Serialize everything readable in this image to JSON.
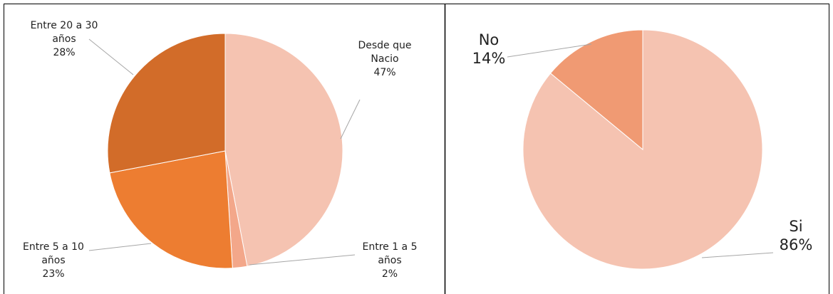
{
  "chart_data": [
    {
      "type": "pie",
      "categories": [
        "Desde que Nacio",
        "Entre 1 a 5 años",
        "Entre 5 a 10 años",
        "Entre 20 a 30 años"
      ],
      "values": [
        47,
        2,
        23,
        28
      ],
      "value_labels": [
        "47%",
        "2%",
        "23%",
        "28%"
      ],
      "colors": [
        "#f5c3b1",
        "#f3a78a",
        "#ed7d31",
        "#d26c29"
      ]
    },
    {
      "type": "pie",
      "categories": [
        "Si",
        "No"
      ],
      "values": [
        86,
        14
      ],
      "value_labels": [
        "86%",
        "14%"
      ],
      "colors": [
        "#f5c3b1",
        "#f09a73"
      ]
    }
  ]
}
